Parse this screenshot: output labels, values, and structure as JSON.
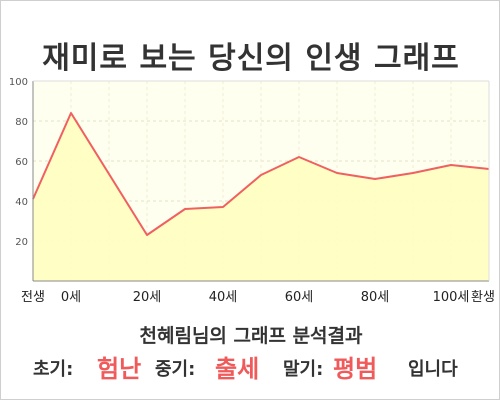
{
  "title": "재미로 보는 당신의 인생 그래프",
  "subtitle": "천혜림님의 그래프 분석결과",
  "result": {
    "early_label": "초기:",
    "early_value": "험난",
    "middle_label": "중기:",
    "middle_value": "출세",
    "late_label": "말기:",
    "late_value": "평범",
    "ending": "입니다"
  },
  "colors": {
    "line": "#f06060",
    "fill": "#ffffc0",
    "plot_bg": "#fffff0",
    "highlight": "#f05a5a"
  },
  "chart_data": {
    "type": "area",
    "x": [
      -10,
      0,
      20,
      30,
      40,
      50,
      60,
      70,
      80,
      90,
      100,
      110
    ],
    "values": [
      41,
      84,
      23,
      36,
      37,
      53,
      62,
      54,
      51,
      54,
      58,
      56
    ],
    "x_tick_values": [
      -10,
      0,
      20,
      40,
      60,
      80,
      100,
      110
    ],
    "x_tick_labels": [
      "전생",
      "0세",
      "20세",
      "40세",
      "60세",
      "80세",
      "100세",
      "환생"
    ],
    "y_ticks": [
      20,
      40,
      60,
      80,
      100
    ],
    "xlim": [
      -10,
      110
    ],
    "ylim": [
      0,
      100
    ],
    "grid": true
  }
}
